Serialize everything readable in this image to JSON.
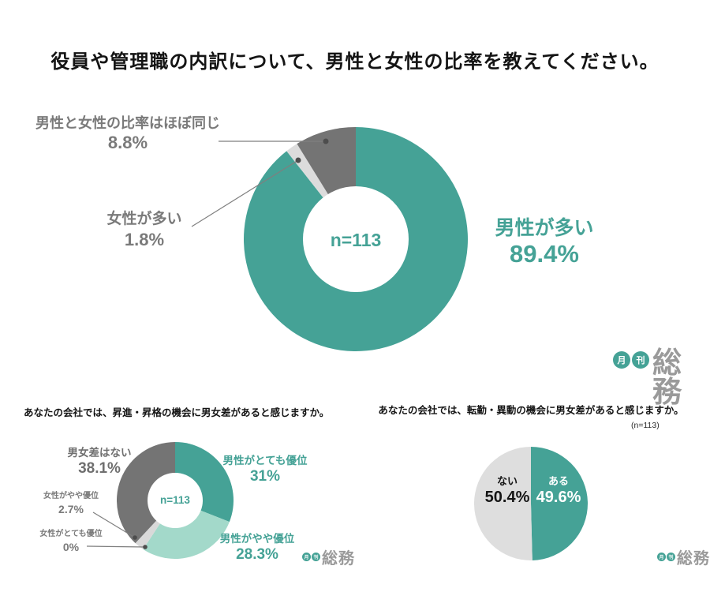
{
  "page": {
    "title": "役員や管理職の内訳について、男性と女性の比率を教えてください。"
  },
  "brand": {
    "circle1": "月",
    "circle2": "刊",
    "name": "総務",
    "teal": "#45a296"
  },
  "chart_data": [
    {
      "type": "pie",
      "variant": "donut",
      "title": "役員や管理職の内訳について、男性と女性の比率を教えてください。",
      "center_label": "n=113",
      "legend_position": "callouts",
      "segments": [
        {
          "label": "男性が多い",
          "value": 89.4,
          "display": "89.4%",
          "color": "#45a296"
        },
        {
          "label": "女性が多い",
          "value": 1.8,
          "display": "1.8%",
          "color": "#dcdcdc"
        },
        {
          "label": "男性と女性の比率はほぼ同じ",
          "value": 8.8,
          "display": "8.8%",
          "color": "#747474"
        }
      ]
    },
    {
      "type": "pie",
      "variant": "donut",
      "title": "あなたの会社では、昇進・昇格の機会に男女差があると感じますか。",
      "center_label": "n=113",
      "legend_position": "callouts",
      "segments": [
        {
          "label": "男性がとても優位",
          "value": 31,
          "display": "31%",
          "color": "#45a296"
        },
        {
          "label": "男性がやや優位",
          "value": 28.3,
          "display": "28.3%",
          "color": "#a3d9ca"
        },
        {
          "label": "女性がとても優位",
          "value": 0,
          "display": "0%",
          "color": "#c9c9c9"
        },
        {
          "label": "女性がやや優位",
          "value": 2.7,
          "display": "2.7%",
          "color": "#d9d9d9"
        },
        {
          "label": "男女差はない",
          "value": 38.1,
          "display": "38.1%",
          "color": "#747474"
        }
      ]
    },
    {
      "type": "pie",
      "variant": "pie",
      "title": "あなたの会社では、転勤・異動の機会に男女差があると感じますか。",
      "note": "(n=113)",
      "legend_position": "inside",
      "segments": [
        {
          "label": "ある",
          "value": 49.6,
          "display": "49.6%",
          "color": "#45a296",
          "text_color": "#ffffff"
        },
        {
          "label": "ない",
          "value": 50.4,
          "display": "50.4%",
          "color": "#dedede",
          "text_color": "#151515"
        }
      ]
    }
  ]
}
